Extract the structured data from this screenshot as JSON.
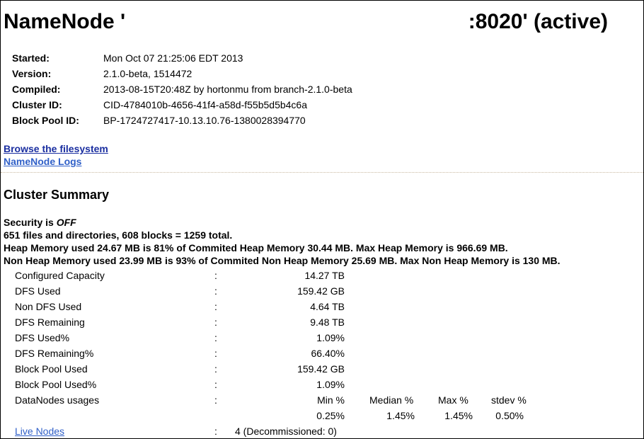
{
  "header": {
    "title_left": "NameNode '",
    "title_right": ":8020' (active)"
  },
  "info": [
    {
      "label": "Started:",
      "value": "Mon Oct 07 21:25:06 EDT 2013"
    },
    {
      "label": "Version:",
      "value": "2.1.0-beta, 1514472"
    },
    {
      "label": "Compiled:",
      "value": "2013-08-15T20:48Z by hortonmu from branch-2.1.0-beta"
    },
    {
      "label": "Cluster ID:",
      "value": "CID-4784010b-4656-41f4-a58d-f55b5d5b4c6a"
    },
    {
      "label": "Block Pool ID:",
      "value": "BP-1724727417-10.13.10.76-1380028394770"
    }
  ],
  "links": {
    "browse": "Browse the filesystem",
    "logs": "NameNode Logs"
  },
  "summary": {
    "heading": "Cluster Summary",
    "security_prefix": "Security is ",
    "security_value": "OFF",
    "files_line": "651 files and directories, 608 blocks = 1259 total.",
    "heap_line": "Heap Memory used 24.67 MB is 81% of Commited Heap Memory 30.44 MB. Max Heap Memory is 966.69 MB.",
    "nonheap_line": "Non Heap Memory used 23.99 MB is 93% of Commited Non Heap Memory 25.69 MB. Max Non Heap Memory is 130 MB."
  },
  "stats": {
    "colon": ":",
    "rows": [
      {
        "label": "Configured Capacity",
        "value": "14.27 TB"
      },
      {
        "label": "DFS Used",
        "value": "159.42 GB"
      },
      {
        "label": "Non DFS Used",
        "value": "4.64 TB"
      },
      {
        "label": "DFS Remaining",
        "value": "9.48 TB"
      },
      {
        "label": "DFS Used%",
        "value": "1.09%"
      },
      {
        "label": "DFS Remaining%",
        "value": "66.40%"
      },
      {
        "label": "Block Pool Used",
        "value": "159.42 GB"
      },
      {
        "label": "Block Pool Used%",
        "value": "1.09%"
      }
    ],
    "usages": {
      "label": "DataNodes usages",
      "headers": [
        "Min %",
        "Median %",
        "Max %",
        "stdev %"
      ],
      "values": [
        "0.25%",
        "1.45%",
        "1.45%",
        "0.50%"
      ]
    },
    "live_nodes": {
      "label": "Live Nodes",
      "value": "4 (Decommissioned: 0)"
    }
  }
}
